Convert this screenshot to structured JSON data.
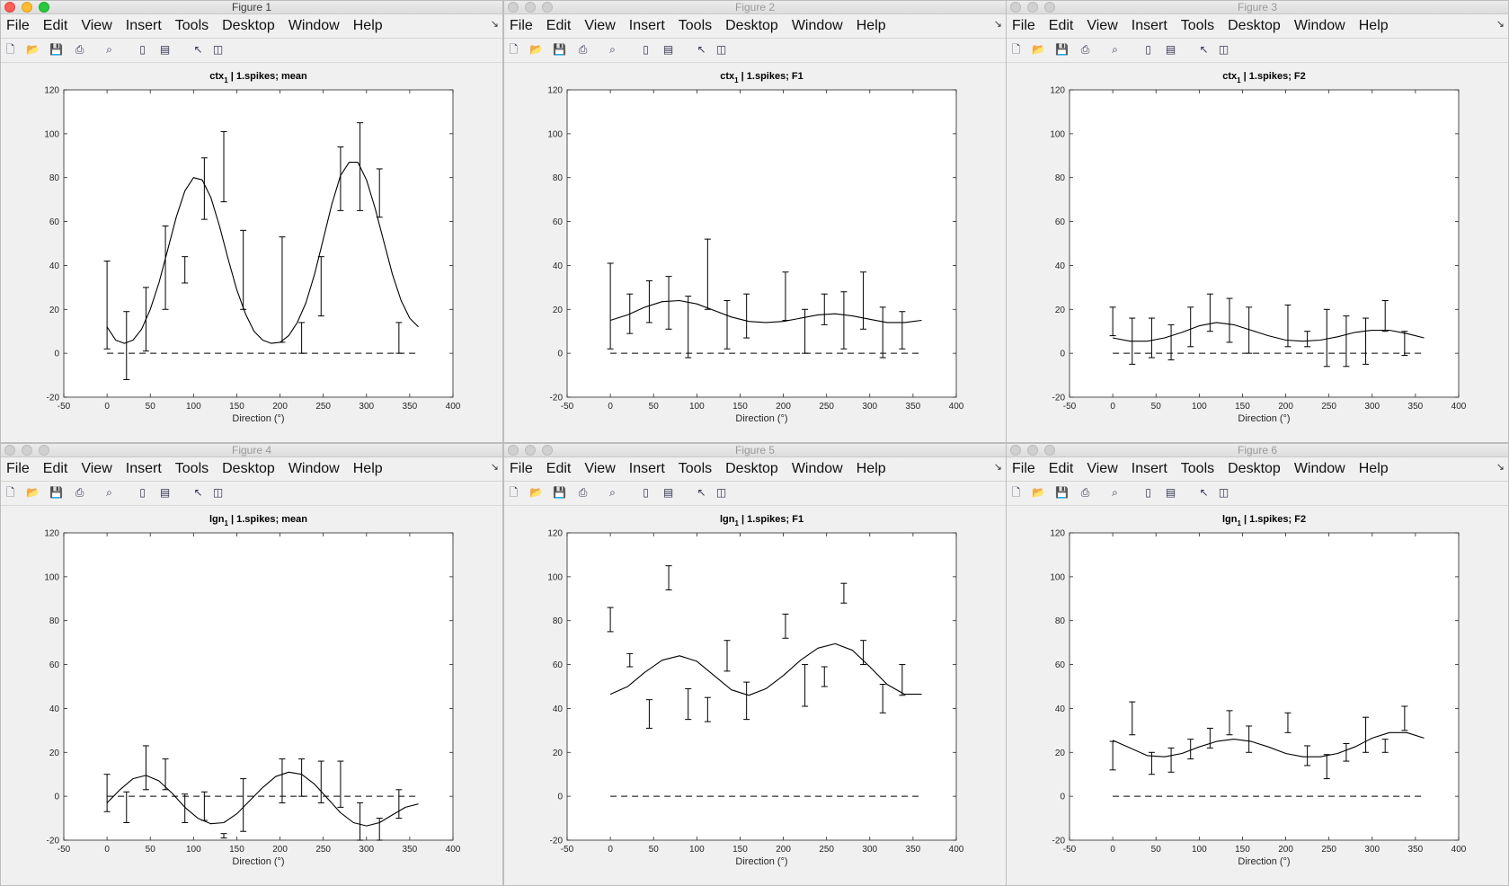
{
  "menu": [
    "File",
    "Edit",
    "View",
    "Insert",
    "Tools",
    "Desktop",
    "Window",
    "Help"
  ],
  "toolbar_icons": [
    "new-figure-icon",
    "open-file-icon",
    "save-icon",
    "print-icon",
    "print-preview-icon",
    "colorbar-icon",
    "legend-icon",
    "pointer-icon",
    "property-editor-icon"
  ],
  "colors": {
    "plot_bg": "#ffffff",
    "window_bg": "#f0f0f0",
    "line": "#000000"
  },
  "figures": [
    {
      "title": "Figure 1",
      "active": true
    },
    {
      "title": "Figure 2",
      "active": false
    },
    {
      "title": "Figure 3",
      "active": false
    },
    {
      "title": "Figure 4",
      "active": false
    },
    {
      "title": "Figure 5",
      "active": false
    },
    {
      "title": "Figure 6",
      "active": false
    }
  ],
  "chart_data": [
    {
      "type": "line",
      "title_main": "ctx",
      "title_sub": "1",
      "title_rest": " | 1.spikes; mean",
      "xlabel": "Direction (°)",
      "ylabel": "",
      "xlim": [
        -50,
        400
      ],
      "ylim": [
        -20,
        120
      ],
      "xticks": [
        "-50",
        "0",
        "50",
        "100",
        "150",
        "200",
        "250",
        "300",
        "350",
        "400"
      ],
      "yticks": [
        "-20",
        "0",
        "20",
        "40",
        "60",
        "80",
        "100",
        "120"
      ],
      "directions": [
        0,
        22.5,
        45,
        67.5,
        90,
        112.5,
        135,
        157.5,
        180,
        202.5,
        225,
        247.5,
        270,
        292.5,
        315,
        337.5
      ],
      "err_low": [
        2,
        -12,
        1,
        20,
        32,
        61,
        69,
        20,
        null,
        5,
        0,
        17,
        65,
        65,
        62,
        0
      ],
      "err_high": [
        42,
        19,
        30,
        58,
        44,
        89,
        101,
        56,
        null,
        53,
        14,
        44,
        94,
        105,
        84,
        14
      ],
      "fit_x": [
        0,
        10,
        20,
        30,
        40,
        50,
        60,
        70,
        80,
        90,
        100,
        110,
        120,
        130,
        140,
        150,
        160,
        170,
        180,
        190,
        200,
        210,
        220,
        230,
        240,
        250,
        260,
        270,
        280,
        290,
        300,
        310,
        320,
        330,
        340,
        350,
        360
      ],
      "fit_y": [
        12,
        6,
        4.5,
        6,
        11,
        20,
        32,
        47,
        62,
        74,
        80,
        79,
        71,
        58,
        43,
        29,
        18,
        10,
        6,
        4.5,
        5,
        8,
        14,
        23,
        36,
        52,
        68,
        81,
        87,
        87,
        79,
        66,
        51,
        36,
        24,
        16,
        12
      ],
      "baseline": 0
    },
    {
      "type": "line",
      "title_main": "ctx",
      "title_sub": "1",
      "title_rest": " | 1.spikes; F1",
      "xlabel": "Direction (°)",
      "ylabel": "",
      "xlim": [
        -50,
        400
      ],
      "ylim": [
        -20,
        120
      ],
      "xticks": [
        "-50",
        "0",
        "50",
        "100",
        "150",
        "200",
        "250",
        "300",
        "350",
        "400"
      ],
      "yticks": [
        "-20",
        "0",
        "20",
        "40",
        "60",
        "80",
        "100",
        "120"
      ],
      "directions": [
        0,
        22.5,
        45,
        67.5,
        90,
        112.5,
        135,
        157.5,
        180,
        202.5,
        225,
        247.5,
        270,
        292.5,
        315,
        337.5
      ],
      "err_low": [
        2,
        9,
        14,
        11,
        -2,
        20,
        2,
        7,
        null,
        15,
        0,
        13,
        2,
        11,
        -2,
        2
      ],
      "err_high": [
        41,
        27,
        33,
        35,
        26,
        52,
        24,
        27,
        null,
        37,
        20,
        27,
        28,
        37,
        21,
        19
      ],
      "fit_x": [
        0,
        20,
        40,
        60,
        80,
        100,
        120,
        140,
        160,
        180,
        200,
        220,
        240,
        260,
        280,
        300,
        320,
        340,
        360
      ],
      "fit_y": [
        15,
        17.5,
        21,
        23.5,
        24,
        22.5,
        19.5,
        16.5,
        14.5,
        14,
        14.5,
        16,
        17.5,
        18,
        17,
        15.5,
        14,
        14,
        15
      ],
      "baseline": 0
    },
    {
      "type": "line",
      "title_main": "ctx",
      "title_sub": "1",
      "title_rest": " | 1.spikes; F2",
      "xlabel": "Direction (°)",
      "ylabel": "",
      "xlim": [
        -50,
        400
      ],
      "ylim": [
        -20,
        120
      ],
      "xticks": [
        "-50",
        "0",
        "50",
        "100",
        "150",
        "200",
        "250",
        "300",
        "350",
        "400"
      ],
      "yticks": [
        "-20",
        "0",
        "20",
        "40",
        "60",
        "80",
        "100",
        "120"
      ],
      "directions": [
        0,
        22.5,
        45,
        67.5,
        90,
        112.5,
        135,
        157.5,
        180,
        202.5,
        225,
        247.5,
        270,
        292.5,
        315,
        337.5
      ],
      "err_low": [
        8,
        -5,
        -2,
        -3,
        3,
        10,
        5,
        0,
        null,
        3,
        3,
        -6,
        -6,
        -5,
        10,
        -1
      ],
      "err_high": [
        21,
        16,
        16,
        13,
        21,
        27,
        25,
        21,
        null,
        22,
        10,
        20,
        17,
        16,
        24,
        10
      ],
      "fit_x": [
        0,
        20,
        40,
        60,
        80,
        100,
        120,
        140,
        160,
        180,
        200,
        220,
        240,
        260,
        280,
        300,
        320,
        340,
        360
      ],
      "fit_y": [
        7,
        5.5,
        5.5,
        7,
        9.5,
        12.5,
        14,
        13,
        10.5,
        8,
        6,
        5.5,
        6,
        7.5,
        9.5,
        10.5,
        10.5,
        9,
        7
      ],
      "baseline": 0
    },
    {
      "type": "line",
      "title_main": "lgn",
      "title_sub": "1",
      "title_rest": " | 1.spikes; mean",
      "xlabel": "Direction (°)",
      "ylabel": "",
      "xlim": [
        -50,
        400
      ],
      "ylim": [
        -20,
        120
      ],
      "xticks": [
        "-50",
        "0",
        "50",
        "100",
        "150",
        "200",
        "250",
        "300",
        "350",
        "400"
      ],
      "yticks": [
        "-20",
        "0",
        "20",
        "40",
        "60",
        "80",
        "100",
        "120"
      ],
      "directions": [
        0,
        22.5,
        45,
        67.5,
        90,
        112.5,
        135,
        157.5,
        180,
        202.5,
        225,
        247.5,
        270,
        292.5,
        315,
        337.5
      ],
      "err_low": [
        -7,
        -12,
        3,
        3,
        -12,
        -11,
        -19,
        -16,
        null,
        -3,
        0,
        -3,
        -5,
        -20,
        -20,
        -10
      ],
      "err_high": [
        10,
        2,
        23,
        17,
        1,
        2,
        -17,
        8,
        null,
        17,
        17,
        16,
        16,
        -3,
        -10,
        3
      ],
      "fit_x": [
        0,
        15,
        30,
        45,
        60,
        75,
        90,
        105,
        120,
        135,
        150,
        165,
        180,
        195,
        210,
        225,
        240,
        255,
        270,
        285,
        300,
        315,
        330,
        345,
        360
      ],
      "fit_y": [
        -3,
        3,
        8,
        9.5,
        7,
        1.5,
        -5,
        -10,
        -12.5,
        -12,
        -8,
        -2,
        4,
        9,
        11,
        10,
        5.5,
        -1,
        -7.5,
        -12,
        -13.5,
        -12,
        -8.5,
        -5,
        -3.5
      ],
      "baseline": 0
    },
    {
      "type": "line",
      "title_main": "lgn",
      "title_sub": "1",
      "title_rest": " | 1.spikes; F1",
      "xlabel": "Direction (°)",
      "ylabel": "",
      "xlim": [
        -50,
        400
      ],
      "ylim": [
        -20,
        120
      ],
      "xticks": [
        "-50",
        "0",
        "50",
        "100",
        "150",
        "200",
        "250",
        "300",
        "350",
        "400"
      ],
      "yticks": [
        "-20",
        "0",
        "20",
        "40",
        "60",
        "80",
        "100",
        "120"
      ],
      "directions": [
        0,
        22.5,
        45,
        67.5,
        90,
        112.5,
        135,
        157.5,
        180,
        202.5,
        225,
        247.5,
        270,
        292.5,
        315,
        337.5
      ],
      "err_low": [
        75,
        59,
        31,
        94,
        35,
        34,
        57,
        35,
        null,
        72,
        41,
        50,
        88,
        60,
        38,
        46
      ],
      "err_high": [
        86,
        65,
        44,
        105,
        49,
        45,
        71,
        52,
        null,
        83,
        60,
        59,
        97,
        71,
        51,
        60
      ],
      "fit_x": [
        0,
        20,
        40,
        60,
        80,
        100,
        120,
        140,
        160,
        180,
        200,
        220,
        240,
        260,
        280,
        300,
        320,
        340,
        360
      ],
      "fit_y": [
        46.5,
        50,
        56.5,
        62,
        64,
        61.5,
        55,
        48.5,
        46,
        49,
        55,
        62,
        67.5,
        69.5,
        66.5,
        59,
        51,
        46.5,
        46.5
      ],
      "baseline": 0
    },
    {
      "type": "line",
      "title_main": "lgn",
      "title_sub": "1",
      "title_rest": " | 1.spikes; F2",
      "xlabel": "Direction (°)",
      "ylabel": "",
      "xlim": [
        -50,
        400
      ],
      "ylim": [
        -20,
        120
      ],
      "xticks": [
        "-50",
        "0",
        "50",
        "100",
        "150",
        "200",
        "250",
        "300",
        "350",
        "400"
      ],
      "yticks": [
        "-20",
        "0",
        "20",
        "40",
        "60",
        "80",
        "100",
        "120"
      ],
      "directions": [
        0,
        22.5,
        45,
        67.5,
        90,
        112.5,
        135,
        157.5,
        180,
        202.5,
        225,
        247.5,
        270,
        292.5,
        315,
        337.5
      ],
      "err_low": [
        12,
        28,
        10,
        11,
        17,
        22,
        28,
        20,
        null,
        29,
        14,
        8,
        16,
        20,
        20,
        30
      ],
      "err_high": [
        25,
        43,
        20,
        22,
        26,
        31,
        39,
        32,
        null,
        38,
        23,
        19,
        24,
        36,
        26,
        41
      ],
      "fit_x": [
        0,
        20,
        40,
        60,
        80,
        100,
        120,
        140,
        160,
        180,
        200,
        220,
        240,
        260,
        280,
        300,
        320,
        340,
        360
      ],
      "fit_y": [
        25.5,
        22,
        18.5,
        18,
        19.5,
        22.5,
        25,
        26,
        25,
        22.5,
        19.5,
        18,
        18,
        19.5,
        22.5,
        26.5,
        29,
        29,
        26.5
      ],
      "baseline": 0
    }
  ]
}
